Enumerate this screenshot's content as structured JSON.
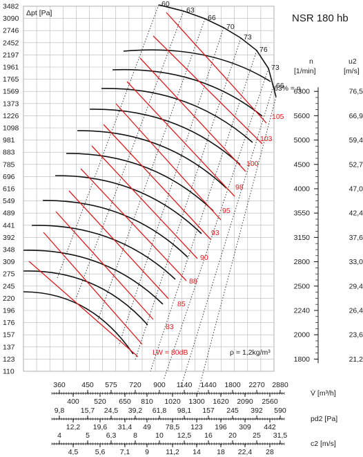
{
  "chart_data": {
    "type": "line",
    "title": "NSR 180 hb",
    "y_axis": {
      "label": "Δpt [Pa]",
      "scale": "log",
      "ticks": [
        110,
        123,
        137,
        157,
        176,
        196,
        220,
        245,
        275,
        309,
        348,
        392,
        441,
        489,
        549,
        616,
        696,
        785,
        883,
        981,
        1098,
        1226,
        1373,
        1569,
        1765,
        1961,
        2197,
        2452,
        2746,
        3090,
        3482
      ]
    },
    "x_axes": [
      {
        "label": "V̇ [m³/h]",
        "scale": "log",
        "upper_ticks": [
          "360",
          "450",
          "575",
          "720",
          "900",
          "1140",
          "1440",
          "1800",
          "2270",
          "2880"
        ],
        "lower_ticks": [
          "400",
          "520",
          "650",
          "810",
          "1020",
          "1300",
          "1620",
          "2090",
          "2560"
        ]
      },
      {
        "label": "pd2 [Pa]",
        "upper_ticks": [
          "9,8",
          "15,7",
          "24,5",
          "39,2",
          "61,8",
          "98,1",
          "157",
          "245",
          "392",
          "590"
        ],
        "lower_ticks": [
          "12,2",
          "19,6",
          "31,4",
          "49",
          "78,5",
          "123",
          "196",
          "309",
          "442"
        ]
      },
      {
        "label": "c2 [m/s]",
        "upper_ticks": [
          "4",
          "5",
          "6,3",
          "8",
          "10",
          "12,5",
          "16",
          "20",
          "25",
          "31,5"
        ],
        "lower_ticks": [
          "4,5",
          "5,6",
          "7,1",
          "9",
          "11,2",
          "14",
          "18",
          "22,4",
          "28"
        ]
      }
    ],
    "right_axes": [
      {
        "label": "n [1/min]",
        "ticks": [
          "6300",
          "5600",
          "5000",
          "4500",
          "4000",
          "3550",
          "3150",
          "2800",
          "2500",
          "2240",
          "2000",
          "1800"
        ]
      },
      {
        "label": "u2 [m/s]",
        "ticks": [
          "76,5",
          "66,9",
          "59,4",
          "52,7",
          "47,0",
          "42,4",
          "37,6",
          "33,0",
          "29,4",
          "26,4",
          "23,6",
          "21,2"
        ]
      }
    ],
    "speed_curves_rpm": [
      6300,
      5600,
      5000,
      4500,
      4000,
      3550,
      3150,
      2800,
      2500,
      2240,
      2000,
      1800
    ],
    "efficiency_lines": {
      "unit": "%",
      "values": [
        60,
        63,
        66,
        70,
        73,
        76,
        73,
        66,
        63
      ],
      "last_label": "63% = η"
    },
    "sound_power_levels": {
      "unit": "dB",
      "values": [
        80,
        83,
        85,
        88,
        90,
        93,
        95,
        98,
        100,
        103,
        105
      ],
      "first_label": "LW = 80dB"
    },
    "annotation": "ρ = 1,2kg/m³"
  }
}
